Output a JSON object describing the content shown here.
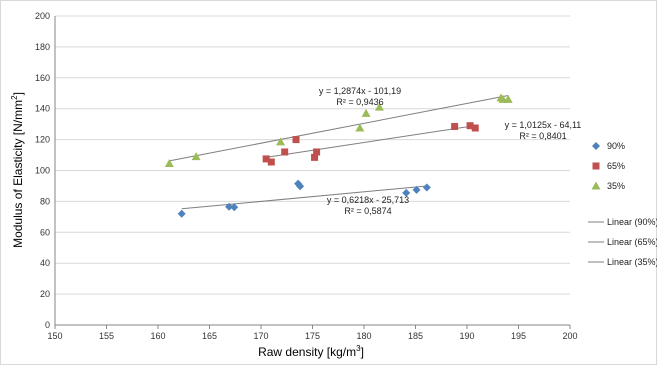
{
  "chart_data": {
    "type": "scatter",
    "title": "",
    "xlabel": "Raw density [kg/m",
    "xlabel_sup": "3",
    "xlabel_end": "]",
    "ylabel": "Modulus of Elasticity [N/mm",
    "ylabel_sup": "2",
    "ylabel_end": "]",
    "xlim": [
      150,
      200
    ],
    "ylim": [
      0,
      200
    ],
    "xticks": [
      150,
      155,
      160,
      165,
      170,
      175,
      180,
      185,
      190,
      195,
      200
    ],
    "yticks": [
      0,
      20,
      40,
      60,
      80,
      100,
      120,
      140,
      160,
      180,
      200
    ],
    "grid": "horizontal",
    "legend_position": "right",
    "series": [
      {
        "name": "90%",
        "marker": "diamond",
        "color": "#4F81BD",
        "points": [
          [
            162.3,
            72
          ],
          [
            166.9,
            76.5
          ],
          [
            167.4,
            76.2
          ],
          [
            173.6,
            91.5
          ],
          [
            173.8,
            89.8
          ],
          [
            184.1,
            85.5
          ],
          [
            185.1,
            87.5
          ],
          [
            186.1,
            89
          ]
        ],
        "trend": {
          "legend": "Linear (90%)",
          "slope": 0.6218,
          "intercept": -25.713,
          "x_range": [
            162.3,
            186.1
          ],
          "eq_label": "y = 0,6218x - 25,713",
          "r2_label": "R² = 0,5874"
        }
      },
      {
        "name": "65%",
        "marker": "square",
        "color": "#C0504D",
        "points": [
          [
            170.5,
            107.5
          ],
          [
            171.0,
            105.5
          ],
          [
            172.3,
            112
          ],
          [
            173.4,
            120
          ],
          [
            175.2,
            108.5
          ],
          [
            175.4,
            112
          ],
          [
            188.8,
            128.5
          ],
          [
            190.3,
            129
          ],
          [
            190.8,
            127.5
          ]
        ],
        "trend": {
          "legend": "Linear (65%)",
          "slope": 1.0125,
          "intercept": -64.11,
          "x_range": [
            170.5,
            190.8
          ],
          "eq_label": "y = 1,0125x - 64,11",
          "r2_label": "R² = 0,8401"
        }
      },
      {
        "name": "35%",
        "marker": "triangle",
        "color": "#9BBB59",
        "points": [
          [
            161.1,
            104.5
          ],
          [
            163.7,
            109
          ],
          [
            171.9,
            118.5
          ],
          [
            179.6,
            127.5
          ],
          [
            180.2,
            137
          ],
          [
            181.5,
            141
          ],
          [
            193.3,
            147
          ],
          [
            193.5,
            146
          ],
          [
            194.0,
            146
          ]
        ],
        "trend": {
          "legend": "Linear (35%)",
          "slope": 1.2874,
          "intercept": -101.19,
          "x_range": [
            161.1,
            194.0
          ],
          "eq_label": "y = 1,2874x - 101,19",
          "r2_label": "R² = 0,9436"
        }
      }
    ]
  }
}
